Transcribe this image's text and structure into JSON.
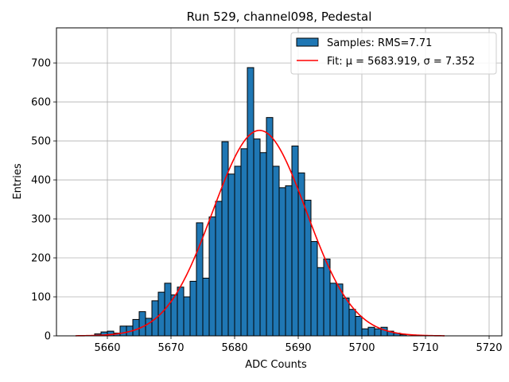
{
  "chart_data": {
    "type": "bar",
    "title": "Run 529, channel098, Pedestal",
    "xlabel": "ADC Counts",
    "ylabel": "Entries",
    "xlim": [
      5652,
      5722
    ],
    "ylim": [
      0,
      790
    ],
    "xticks": [
      5660,
      5670,
      5680,
      5690,
      5700,
      5710,
      5720
    ],
    "yticks": [
      0,
      100,
      200,
      300,
      400,
      500,
      600,
      700
    ],
    "grid": true,
    "legend_position": "top-right",
    "bar_color": "#1f77b4",
    "fit_color": "#ff0000",
    "histogram": {
      "name": "Samples: RMS=7.71",
      "bin_width": 1,
      "bin_start": [
        5658,
        5659,
        5660,
        5661,
        5662,
        5663,
        5664,
        5665,
        5666,
        5667,
        5668,
        5669,
        5670,
        5671,
        5672,
        5673,
        5674,
        5675,
        5676,
        5677,
        5678,
        5679,
        5680,
        5681,
        5682,
        5683,
        5684,
        5685,
        5686,
        5687,
        5688,
        5689,
        5690,
        5691,
        5692,
        5693,
        5694,
        5695,
        5696,
        5697,
        5698,
        5699,
        5700,
        5701,
        5702,
        5703,
        5704,
        5705,
        5706
      ],
      "counts": [
        5,
        10,
        12,
        7,
        25,
        25,
        42,
        62,
        45,
        90,
        112,
        135,
        105,
        125,
        100,
        140,
        290,
        148,
        305,
        345,
        498,
        415,
        435,
        480,
        688,
        505,
        470,
        560,
        435,
        380,
        385,
        487,
        418,
        348,
        242,
        175,
        197,
        135,
        133,
        97,
        68,
        50,
        18,
        22,
        18,
        22,
        12,
        7,
        3
      ]
    },
    "fit": {
      "name": "Fit: μ = 5683.919, σ = 7.352",
      "mu": 5683.919,
      "sigma": 7.352,
      "amplitude": 527,
      "x_range": [
        5655,
        5713
      ]
    }
  }
}
